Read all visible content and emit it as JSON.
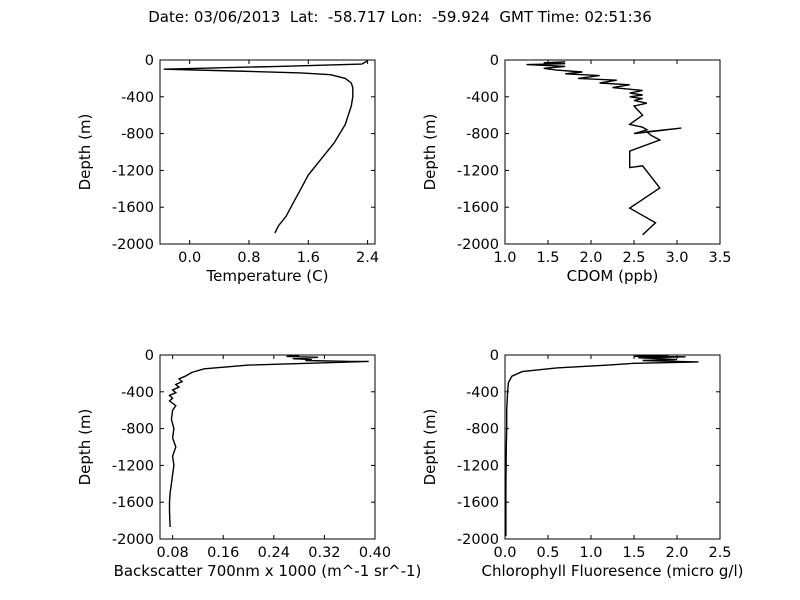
{
  "suptitle": "Date: 03/06/2013  Lat:  -58.717 Lon:  -59.924  GMT Time: 02:51:36",
  "chart_data": [
    {
      "type": "line",
      "xlabel": "Temperature (C)",
      "ylabel": "Depth (m)",
      "xlim": [
        -0.4,
        2.5
      ],
      "ylim": [
        -2000,
        0
      ],
      "xticks": [
        "0.0",
        "0.8",
        "1.6",
        "2.4"
      ],
      "yticks": [
        "0",
        "-400",
        "-800",
        "-1200",
        "-1600",
        "-2000"
      ],
      "grid": false,
      "series": [
        {
          "x": [
            2.4,
            2.38,
            2.32,
            1.2,
            -0.35,
            0.6,
            1.5,
            1.9,
            2.1,
            2.18,
            2.2,
            2.2,
            2.18,
            2.1,
            1.95,
            1.75,
            1.6,
            1.5,
            1.4,
            1.3,
            1.2,
            1.15
          ],
          "y": [
            -5,
            -20,
            -45,
            -70,
            -100,
            -120,
            -140,
            -160,
            -200,
            -250,
            -300,
            -400,
            -500,
            -700,
            -900,
            -1100,
            -1250,
            -1400,
            -1550,
            -1700,
            -1800,
            -1880
          ]
        }
      ]
    },
    {
      "type": "line",
      "xlabel": "CDOM (ppb)",
      "ylabel": "Depth (m)",
      "xlim": [
        1.0,
        3.5
      ],
      "ylim": [
        -2000,
        0
      ],
      "xticks": [
        "1.0",
        "1.5",
        "2.0",
        "2.5",
        "3.0",
        "3.5"
      ],
      "yticks": [
        "0",
        "-400",
        "-800",
        "-1200",
        "-1600",
        "-2000"
      ],
      "grid": false,
      "series": [
        {
          "x": [
            1.7,
            1.45,
            1.7,
            1.25,
            1.5,
            1.7,
            1.45,
            1.6,
            1.9,
            1.7,
            2.1,
            1.85,
            2.3,
            2.1,
            2.45,
            2.25,
            2.6,
            2.45,
            2.6,
            2.45,
            2.6,
            2.5,
            2.65,
            2.5,
            2.55,
            2.6,
            2.45,
            2.6,
            2.65,
            2.5,
            3.05,
            2.65,
            2.7,
            2.8,
            2.45,
            2.45,
            2.6,
            2.8,
            2.45,
            2.75,
            2.6
          ],
          "y": [
            -20,
            -30,
            -40,
            -50,
            -60,
            -70,
            -90,
            -110,
            -130,
            -150,
            -170,
            -200,
            -220,
            -250,
            -270,
            -300,
            -330,
            -360,
            -380,
            -400,
            -420,
            -440,
            -470,
            -500,
            -550,
            -600,
            -700,
            -730,
            -760,
            -800,
            -740,
            -780,
            -820,
            -870,
            -990,
            -1170,
            -1150,
            -1390,
            -1610,
            -1770,
            -1900
          ]
        }
      ]
    },
    {
      "type": "line",
      "xlabel": "Backscatter 700nm x 1000 (m^-1 sr^-1)",
      "ylabel": "Depth (m)",
      "xlim": [
        0.06,
        0.4
      ],
      "ylim": [
        -2000,
        0
      ],
      "xticks": [
        "0.08",
        "0.16",
        "0.24",
        "0.32",
        "0.40"
      ],
      "yticks": [
        "0",
        "-400",
        "-800",
        "-1200",
        "-1600",
        "-2000"
      ],
      "grid": false,
      "series": [
        {
          "x": [
            0.28,
            0.26,
            0.31,
            0.27,
            0.3,
            0.29,
            0.36,
            0.39,
            0.2,
            0.13,
            0.11,
            0.1,
            0.09,
            0.095,
            0.085,
            0.09,
            0.08,
            0.085,
            0.075,
            0.08,
            0.075,
            0.085,
            0.08,
            0.078,
            0.082,
            0.08,
            0.085,
            0.08,
            0.082,
            0.08,
            0.078,
            0.076,
            0.075,
            0.075,
            0.076
          ],
          "y": [
            -5,
            -15,
            -25,
            -40,
            -50,
            -60,
            -70,
            -70,
            -110,
            -150,
            -190,
            -230,
            -260,
            -290,
            -320,
            -350,
            -380,
            -410,
            -440,
            -470,
            -500,
            -550,
            -600,
            -700,
            -800,
            -900,
            -1000,
            -1100,
            -1200,
            -1300,
            -1400,
            -1500,
            -1600,
            -1700,
            -1870
          ]
        }
      ]
    },
    {
      "type": "line",
      "xlabel": "Chlorophyll Fluoresence (micro g/l)",
      "ylabel": "Depth (m)",
      "xlim": [
        0.0,
        2.5
      ],
      "ylim": [
        -2000,
        0
      ],
      "xticks": [
        "0.0",
        "0.5",
        "1.0",
        "1.5",
        "2.0",
        "2.5"
      ],
      "yticks": [
        "0",
        "-400",
        "-800",
        "-1200",
        "-1600",
        "-2000"
      ],
      "grid": false,
      "series": [
        {
          "x": [
            1.9,
            1.5,
            2.1,
            1.55,
            1.8,
            2.0,
            1.6,
            2.0,
            2.25,
            1.5,
            1.2,
            0.6,
            0.2,
            0.08,
            0.04,
            0.03,
            0.02,
            0.02,
            0.015,
            0.01,
            0.01,
            0.01
          ],
          "y": [
            -5,
            -15,
            -20,
            -30,
            -40,
            -50,
            -60,
            -70,
            -75,
            -90,
            -110,
            -140,
            -180,
            -230,
            -300,
            -400,
            -600,
            -800,
            -1000,
            -1400,
            -1700,
            -1970
          ]
        }
      ]
    }
  ]
}
